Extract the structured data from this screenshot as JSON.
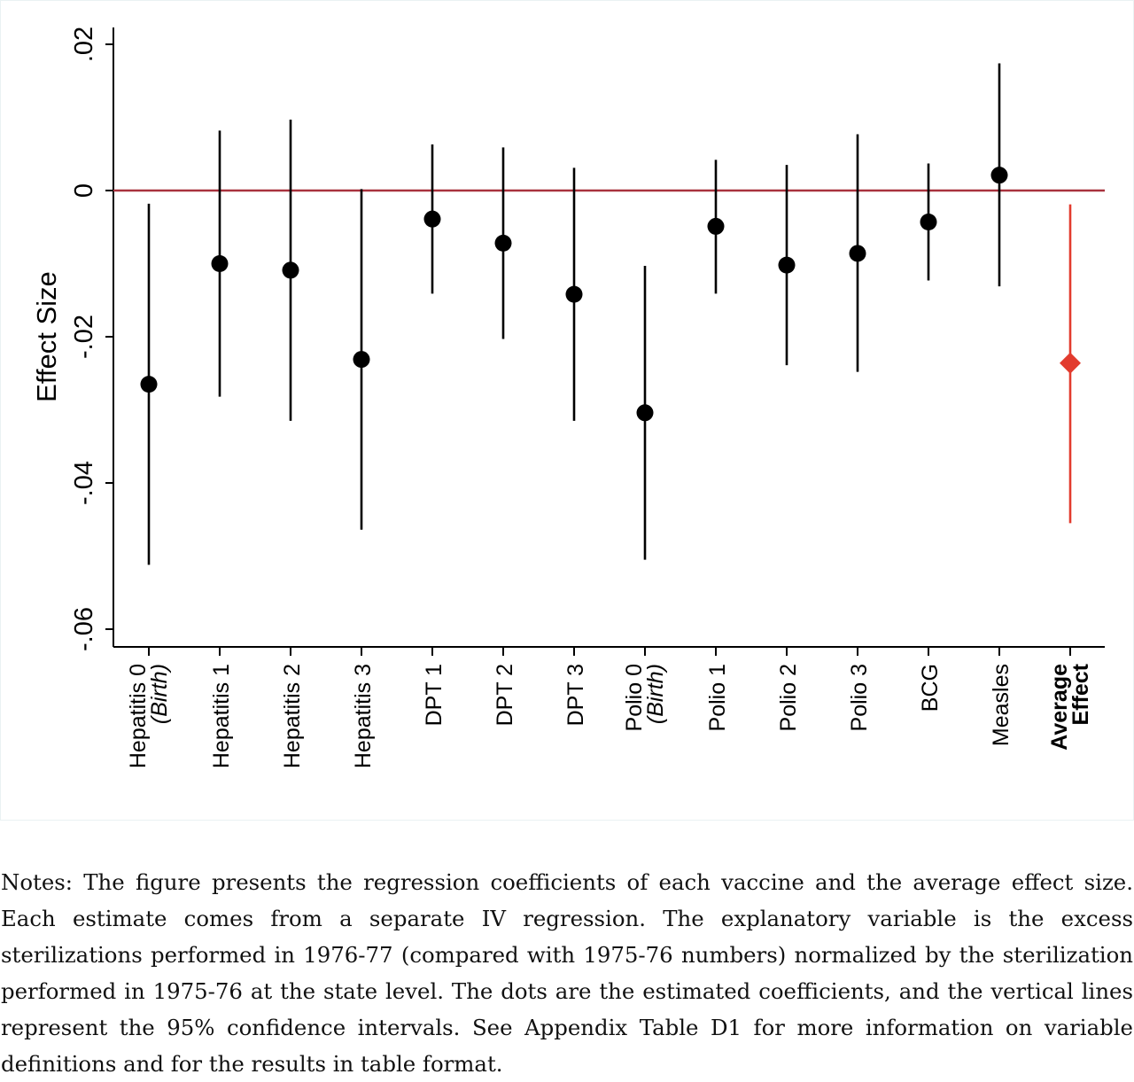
{
  "chart_data": {
    "type": "scatter",
    "ylabel": "Effect Size",
    "ylim": [
      -0.0625,
      0.0225
    ],
    "yticks": [
      {
        "value": 0.02,
        "label": ".02"
      },
      {
        "value": 0,
        "label": "0"
      },
      {
        "value": -0.02,
        "label": "-.02"
      },
      {
        "value": -0.04,
        "label": "-.04"
      },
      {
        "value": -0.06,
        "label": "-.06"
      }
    ],
    "reference_line": {
      "value": 0,
      "color": "#a8323e"
    },
    "grid": false,
    "points": [
      {
        "label": "Hepatitis 0",
        "sublabel": "(Birth)",
        "estimate": -0.0265,
        "ci_low": -0.0512,
        "ci_high": -0.0018
      },
      {
        "label": "Hepatitis 1",
        "sublabel": "",
        "estimate": -0.01,
        "ci_low": -0.0282,
        "ci_high": 0.0082
      },
      {
        "label": "Hepatitis 2",
        "sublabel": "",
        "estimate": -0.0109,
        "ci_low": -0.0315,
        "ci_high": 0.0097
      },
      {
        "label": "Hepatitis 3",
        "sublabel": "",
        "estimate": -0.0231,
        "ci_low": -0.0464,
        "ci_high": 0.0002
      },
      {
        "label": "DPT 1",
        "sublabel": "",
        "estimate": -0.0039,
        "ci_low": -0.0141,
        "ci_high": 0.0063
      },
      {
        "label": "DPT 2",
        "sublabel": "",
        "estimate": -0.0072,
        "ci_low": -0.0203,
        "ci_high": 0.0059
      },
      {
        "label": "DPT 3",
        "sublabel": "",
        "estimate": -0.0142,
        "ci_low": -0.0315,
        "ci_high": 0.0031
      },
      {
        "label": "Polio 0",
        "sublabel": "(Birth)",
        "estimate": -0.0304,
        "ci_low": -0.0505,
        "ci_high": -0.0103
      },
      {
        "label": "Polio 1",
        "sublabel": "",
        "estimate": -0.0049,
        "ci_low": -0.0141,
        "ci_high": 0.0042
      },
      {
        "label": "Polio 2",
        "sublabel": "",
        "estimate": -0.0102,
        "ci_low": -0.0239,
        "ci_high": 0.0035
      },
      {
        "label": "Polio 3",
        "sublabel": "",
        "estimate": -0.0086,
        "ci_low": -0.0248,
        "ci_high": 0.0077
      },
      {
        "label": "BCG",
        "sublabel": "",
        "estimate": -0.0043,
        "ci_low": -0.0123,
        "ci_high": 0.0037
      },
      {
        "label": "Measles",
        "sublabel": "",
        "estimate": 0.0021,
        "ci_low": -0.0131,
        "ci_high": 0.0174
      },
      {
        "label": "Average",
        "sublabel": "Effect",
        "estimate": -0.0236,
        "ci_low": -0.0455,
        "ci_high": -0.0019,
        "highlight": true
      }
    ],
    "colors": {
      "point": "#000000",
      "ci": "#000000",
      "highlight": "#e23b2e",
      "zero_line": "#a8323e"
    }
  },
  "notes": "Notes: The figure presents the regression coefficients of each vaccine and the average effect size. Each estimate comes from a separate IV regression.  The explanatory variable is the excess sterilizations performed in 1976-77 (compared with 1975-76 numbers) normalized by the sterilization performed in 1975-76 at the state level. The dots are the estimated coefficients, and the vertical lines represent the 95% confidence intervals. See Appendix Table D1 for more information on variable definitions and for the results in table format."
}
